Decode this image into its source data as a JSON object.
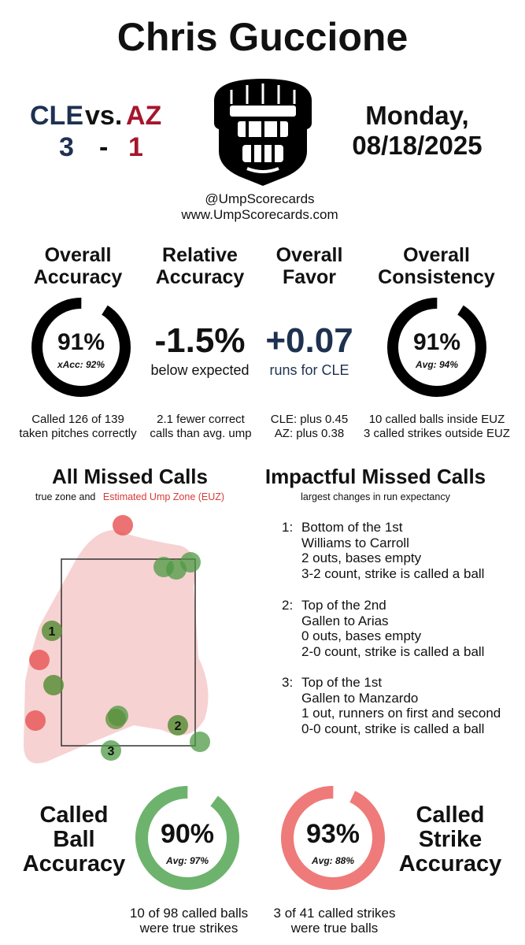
{
  "umpire": "Chris Guccione",
  "matchup": {
    "away_team": "CLE",
    "vs": "vs.",
    "home_team": "AZ",
    "away_score": "3",
    "dash": "-",
    "home_score": "1",
    "away_color": "#1e3150",
    "home_color": "#a5162c"
  },
  "date": {
    "weekday": "Monday,",
    "date": "08/18/2025"
  },
  "credits": {
    "handle": "@UmpScorecards",
    "site": "www.UmpScorecards.com"
  },
  "metrics": {
    "overall_accuracy": {
      "title1": "Overall",
      "title2": "Accuracy",
      "value": "91%",
      "sub": "xAcc: 92%",
      "fraction": 0.91,
      "note1": "Called 126 of 139",
      "note2": "taken pitches correctly"
    },
    "relative_accuracy": {
      "title1": "Relative",
      "title2": "Accuracy",
      "value": "-1.5%",
      "sub": "below expected",
      "note1": "2.1 fewer correct",
      "note2": "calls than avg. ump"
    },
    "overall_favor": {
      "title1": "Overall",
      "title2": "Favor",
      "value": "+0.07",
      "sub": "runs for CLE",
      "note1": "CLE: plus 0.45",
      "note2": "AZ: plus 0.38"
    },
    "overall_consistency": {
      "title1": "Overall",
      "title2": "Consistency",
      "value": "91%",
      "sub": "Avg: 94%",
      "fraction": 0.91,
      "note1": "10 called balls inside EUZ",
      "note2": "3 called strikes outside EUZ"
    }
  },
  "missed_calls": {
    "title": "All Missed Calls",
    "legend_plain": "true zone and",
    "legend_euz": "Estimated Ump Zone (EUZ)",
    "euz_color": "#f4c2c2",
    "labels": [
      "1",
      "2",
      "3"
    ]
  },
  "impactful": {
    "title": "Impactful Missed Calls",
    "subtitle": "largest changes in run expectancy",
    "items": [
      {
        "num": "1:",
        "l1": "Bottom of the 1st",
        "l2": "Williams to Carroll",
        "l3": "2 outs, bases empty",
        "l4": "3-2 count, strike is called a ball"
      },
      {
        "num": "2:",
        "l1": "Top of the 2nd",
        "l2": "Gallen to Arias",
        "l3": "0 outs, bases empty",
        "l4": "2-0 count, strike is called a ball"
      },
      {
        "num": "3:",
        "l1": "Top of the 1st",
        "l2": "Gallen to Manzardo",
        "l3": "1 out, runners on first and second",
        "l4": "0-0 count, strike is called a ball"
      }
    ]
  },
  "ball_accuracy": {
    "t1": "Called",
    "t2": "Ball",
    "t3": "Accuracy",
    "value": "90%",
    "sub": "Avg: 97%",
    "fraction": 0.9,
    "color": "#6db36d",
    "note1": "10 of 98 called balls",
    "note2": "were true strikes"
  },
  "strike_accuracy": {
    "t1": "Called",
    "t2": "Strike",
    "t3": "Accuracy",
    "value": "93%",
    "sub": "Avg: 88%",
    "fraction": 0.93,
    "color": "#ef7a7a",
    "note1": "3 of 41 called strikes",
    "note2": "were true balls"
  }
}
